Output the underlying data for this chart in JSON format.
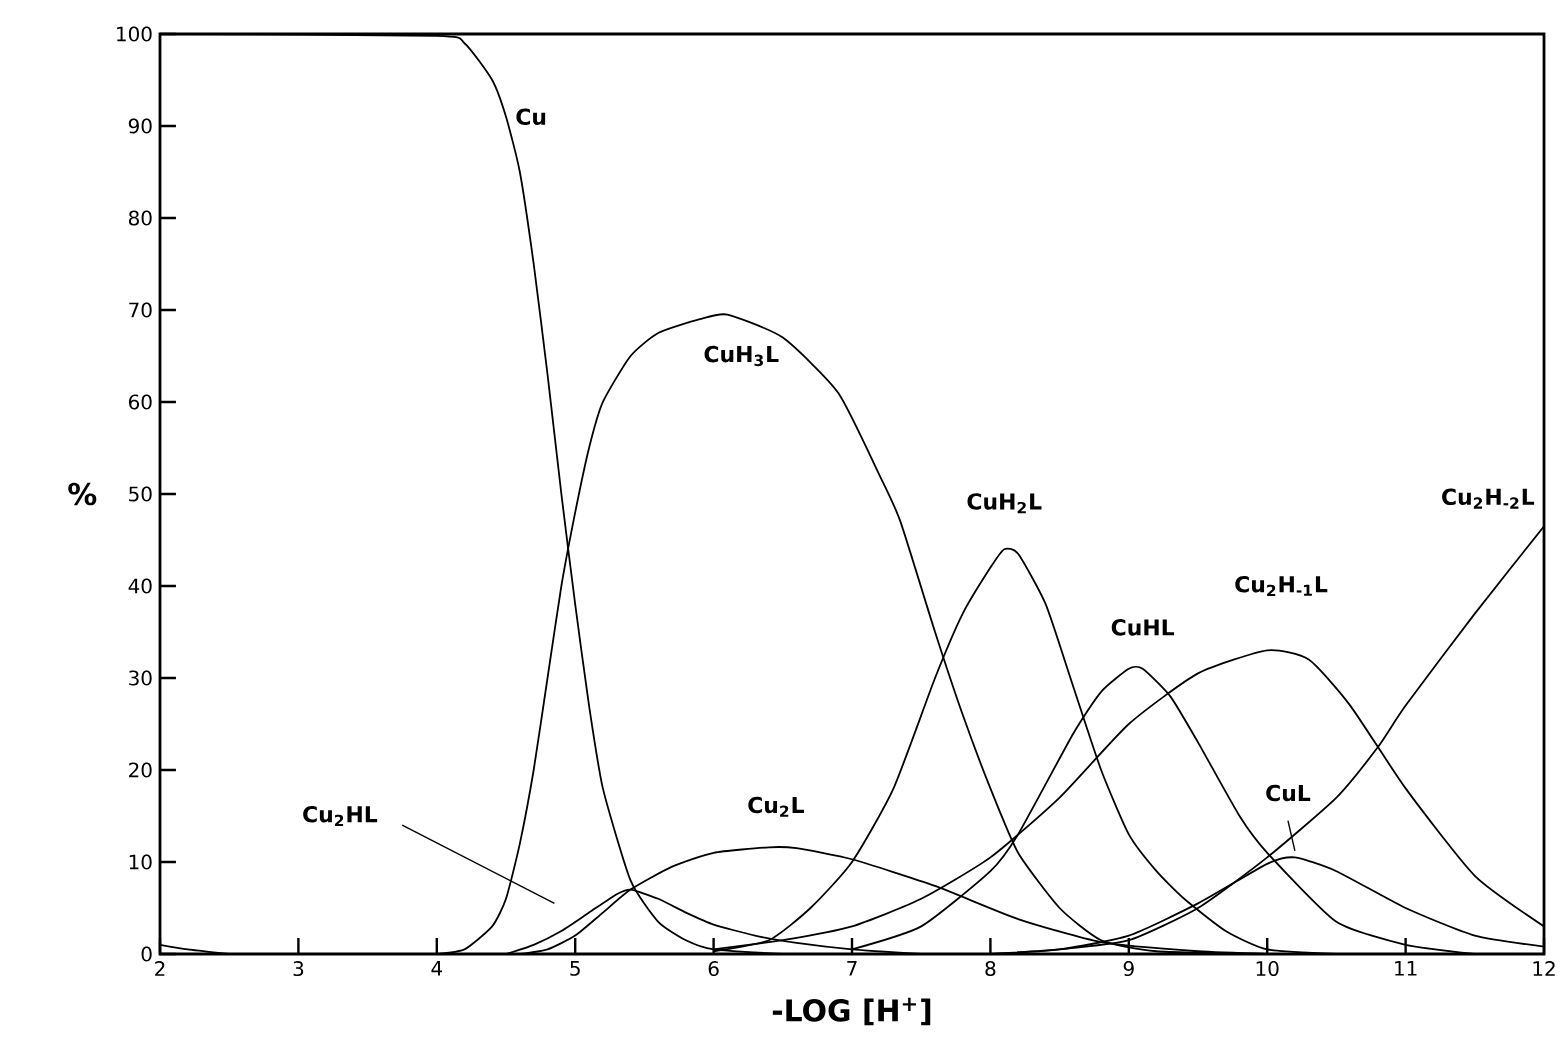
{
  "chart_data": {
    "type": "line",
    "xlabel": "-LOG [H$^{+}$]",
    "ylabel": "%",
    "xlim": [
      2,
      12
    ],
    "ylim": [
      0,
      100
    ],
    "xticks": [
      2,
      3,
      4,
      5,
      6,
      7,
      8,
      9,
      10,
      11,
      12
    ],
    "yticks": [
      0,
      10,
      20,
      30,
      40,
      50,
      60,
      70,
      80,
      90,
      100
    ],
    "grid": false,
    "legend": false,
    "marker": "none",
    "line_style": "solid",
    "series": [
      {
        "name": "Cu",
        "color": "#000000",
        "x": [
          2,
          4,
          4.2,
          4.4,
          4.5,
          4.6,
          4.7,
          4.8,
          4.9,
          5.0,
          5.1,
          5.2,
          5.4,
          5.6,
          5.8,
          6.0,
          6.5
        ],
        "values": [
          100,
          99.8,
          99,
          95,
          91,
          85,
          75,
          63,
          50,
          38,
          27,
          18,
          8,
          3.5,
          1.5,
          0.5,
          0
        ]
      },
      {
        "name": "CuH$_{3}$L",
        "color": "#000000",
        "x": [
          4,
          4.2,
          4.4,
          4.5,
          4.6,
          4.7,
          4.8,
          4.9,
          5.0,
          5.1,
          5.2,
          5.4,
          5.6,
          5.9,
          6.1,
          6.5,
          6.9,
          7.2,
          7.35,
          7.6,
          7.8,
          8.0,
          8.2,
          8.5,
          8.8,
          9.2,
          10
        ],
        "values": [
          0,
          0.5,
          3,
          6,
          12,
          20,
          30,
          40,
          48,
          55,
          60,
          65,
          67.5,
          69,
          69.5,
          67,
          61,
          52,
          47,
          35,
          26,
          18,
          11,
          5,
          1.5,
          0.3,
          0
        ]
      },
      {
        "name": "Cu$_{2}$HL",
        "color": "#000000",
        "x": [
          4.5,
          4.7,
          4.9,
          5.1,
          5.3,
          5.4,
          5.6,
          5.8,
          6.0,
          6.3,
          6.6,
          7.0,
          7.5
        ],
        "values": [
          0,
          1,
          2.5,
          4.5,
          6.5,
          7,
          6,
          4.5,
          3.2,
          2,
          1.2,
          0.5,
          0
        ]
      },
      {
        "name": "Cu$_{2}$L",
        "color": "#000000",
        "x": [
          4.6,
          4.8,
          5.0,
          5.2,
          5.4,
          5.7,
          6.0,
          6.4,
          6.6,
          7.0,
          7.6,
          8.2,
          8.8,
          9.5,
          10
        ],
        "values": [
          0,
          0.5,
          2,
          4.5,
          7,
          9.5,
          11,
          11.6,
          11.5,
          10.3,
          7.4,
          3.8,
          1.3,
          0.3,
          0
        ]
      },
      {
        "name": "CuH$_{2}$L",
        "color": "#000000",
        "x": [
          6.0,
          6.4,
          6.7,
          7.0,
          7.3,
          7.6,
          7.8,
          8.0,
          8.1,
          8.2,
          8.4,
          8.6,
          8.8,
          9.0,
          9.2,
          9.4,
          9.7,
          10,
          10.5
        ],
        "values": [
          0.3,
          1.5,
          5,
          10,
          18,
          30,
          37,
          42,
          44,
          43.5,
          38,
          29,
          20,
          13,
          9,
          6,
          2.5,
          0.5,
          0
        ]
      },
      {
        "name": "CuHL",
        "color": "#000000",
        "x": [
          7.0,
          7.5,
          8.0,
          8.2,
          8.6,
          8.8,
          9.0,
          9.1,
          9.3,
          9.5,
          9.8,
          10.0,
          10.5,
          11,
          11.5
        ],
        "values": [
          0.5,
          3,
          9,
          13,
          24,
          28.5,
          31,
          31,
          28,
          23,
          15,
          11,
          3.5,
          1,
          0
        ]
      },
      {
        "name": "Cu$_{2}$H$_{-1}$L",
        "color": "#000000",
        "x": [
          6,
          6.5,
          7,
          7.5,
          8,
          8.5,
          9,
          9.5,
          10,
          10.3,
          10.6,
          11,
          11.5,
          12
        ],
        "values": [
          0.5,
          1.5,
          3,
          6,
          10.5,
          17,
          25,
          30.5,
          33,
          32,
          27,
          18,
          8.5,
          3
        ]
      },
      {
        "name": "CuL",
        "color": "#000000",
        "x": [
          8,
          8.5,
          9,
          9.5,
          10,
          10.2,
          10.5,
          11,
          11.5,
          12
        ],
        "values": [
          0,
          0.5,
          2,
          5.5,
          9.8,
          10.5,
          9,
          5,
          2,
          0.8
        ]
      },
      {
        "name": "Cu$_{2}$H$_{-2}$L",
        "color": "#000000",
        "x": [
          8,
          8.5,
          9,
          9.5,
          10,
          10.5,
          10.8,
          11,
          11.5,
          12
        ],
        "values": [
          0,
          0.5,
          1.5,
          5,
          10.5,
          17,
          22.5,
          27,
          37,
          46.5
        ]
      },
      {
        "color": "#000000",
        "x": [
          2,
          2.2,
          2.5
        ],
        "values": [
          1,
          0.5,
          0
        ]
      }
    ]
  }
}
